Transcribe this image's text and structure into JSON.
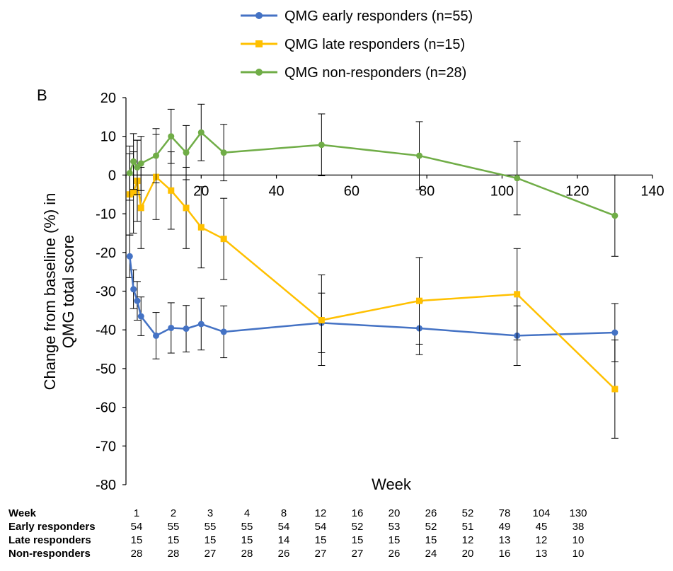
{
  "chart_data": {
    "type": "line",
    "panel_label": "B",
    "xlabel": "Week",
    "ylabel_line1": "Change from baseline (%) in",
    "ylabel_line2": "QMG total score",
    "xlim": [
      0,
      140
    ],
    "ylim": [
      -80,
      20
    ],
    "x_ticks": [
      "20",
      "40",
      "60",
      "80",
      "100",
      "120",
      "140"
    ],
    "y_ticks": [
      "20",
      "10",
      "0",
      "-10",
      "-20",
      "-30",
      "-40",
      "-50",
      "-60",
      "-70",
      "-80"
    ],
    "legend_position": "top-center",
    "series": [
      {
        "name": "QMG early responders (n=55)",
        "color": "#4472c4",
        "marker": "circle",
        "points": [
          {
            "x": 1,
            "y": -21,
            "err": 5.5
          },
          {
            "x": 2,
            "y": -29.5,
            "err": 5
          },
          {
            "x": 3,
            "y": -32.5,
            "err": 5
          },
          {
            "x": 4,
            "y": -36.5,
            "err": 5
          },
          {
            "x": 8,
            "y": -41.5,
            "err": 6
          },
          {
            "x": 12,
            "y": -39.5,
            "err": 6.5
          },
          {
            "x": 16,
            "y": -39.7,
            "err": 6
          },
          {
            "x": 20,
            "y": -38.5,
            "err": 6.7
          },
          {
            "x": 26,
            "y": -40.5,
            "err": 6.7
          },
          {
            "x": 52,
            "y": -38.2,
            "err": 7.7
          },
          {
            "x": 78,
            "y": -39.6,
            "err": 6.8
          },
          {
            "x": 104,
            "y": -41.5,
            "err": 7.7
          },
          {
            "x": 130,
            "y": -40.7,
            "err": 7.5
          }
        ]
      },
      {
        "name": "QMG late responders (n=15)",
        "color": "#ffc000",
        "marker": "square",
        "points": [
          {
            "x": 1,
            "y": -5,
            "err": 10.5
          },
          {
            "x": 2,
            "y": -4.5,
            "err": 10.5
          },
          {
            "x": 3,
            "y": -1.5,
            "err": 10.5
          },
          {
            "x": 4,
            "y": -8.5,
            "err": 10.5
          },
          {
            "x": 8,
            "y": -0.5,
            "err": 11
          },
          {
            "x": 12,
            "y": -4,
            "err": 10
          },
          {
            "x": 16,
            "y": -8.5,
            "err": 10.5
          },
          {
            "x": 20,
            "y": -13.5,
            "err": 10.5
          },
          {
            "x": 26,
            "y": -16.5,
            "err": 10.5
          },
          {
            "x": 52,
            "y": -37.5,
            "err": 11.7
          },
          {
            "x": 78,
            "y": -32.5,
            "err": 11.2
          },
          {
            "x": 104,
            "y": -30.8,
            "err": 11.8
          },
          {
            "x": 130,
            "y": -55.3,
            "err": 12.7
          }
        ]
      },
      {
        "name": "QMG non-responders (n=28)",
        "color": "#70ad47",
        "marker": "circle",
        "points": [
          {
            "x": 1,
            "y": 0.5,
            "err": 7
          },
          {
            "x": 2,
            "y": 3.5,
            "err": 7.2
          },
          {
            "x": 3,
            "y": 2,
            "err": 7
          },
          {
            "x": 4,
            "y": 3,
            "err": 7
          },
          {
            "x": 8,
            "y": 5,
            "err": 7
          },
          {
            "x": 12,
            "y": 10,
            "err": 7
          },
          {
            "x": 16,
            "y": 5.8,
            "err": 7
          },
          {
            "x": 20,
            "y": 11,
            "err": 7.3
          },
          {
            "x": 26,
            "y": 5.8,
            "err": 7.3
          },
          {
            "x": 52,
            "y": 7.8,
            "err": 8
          },
          {
            "x": 78,
            "y": 5,
            "err": 8.8
          },
          {
            "x": 104,
            "y": -0.8,
            "err": 9.5
          },
          {
            "x": 130,
            "y": -10.5,
            "err": 10.5
          }
        ]
      }
    ]
  },
  "counts_table": {
    "header_label": "Week",
    "weeks": [
      "1",
      "2",
      "3",
      "4",
      "8",
      "12",
      "16",
      "20",
      "26",
      "52",
      "78",
      "104",
      "130"
    ],
    "rows": [
      {
        "label": "Early responders",
        "values": [
          "54",
          "55",
          "55",
          "55",
          "54",
          "54",
          "52",
          "53",
          "52",
          "51",
          "49",
          "45",
          "38"
        ]
      },
      {
        "label": "Late responders",
        "values": [
          "15",
          "15",
          "15",
          "15",
          "14",
          "15",
          "15",
          "15",
          "15",
          "12",
          "13",
          "12",
          "10"
        ]
      },
      {
        "label": "Non-responders",
        "values": [
          "28",
          "28",
          "27",
          "28",
          "26",
          "27",
          "27",
          "26",
          "24",
          "20",
          "16",
          "13",
          "10"
        ]
      }
    ]
  }
}
